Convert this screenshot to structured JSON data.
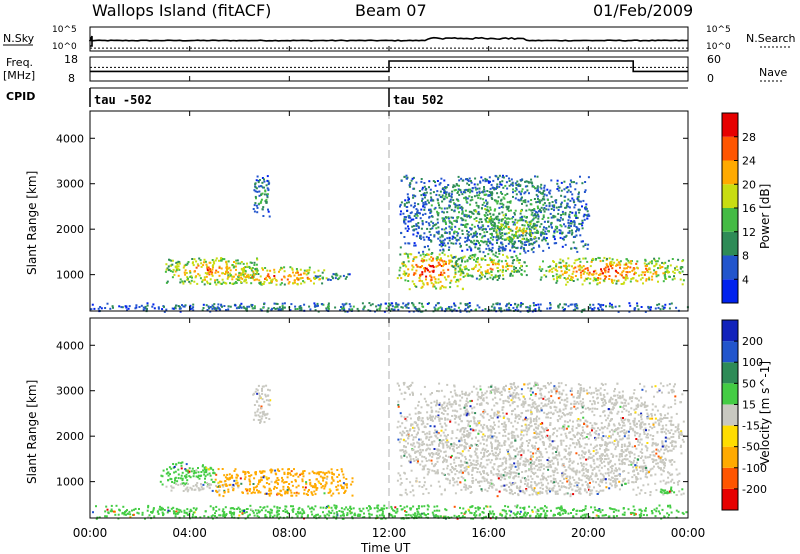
{
  "header": {
    "station": "Wallops Island (fitACF)",
    "beam": "Beam 07",
    "date": "01/Feb/2009"
  },
  "side_labels": {
    "nsky": "N.Sky",
    "nsearch": "N.Search",
    "freq": "Freq.",
    "freq_unit": "[MHz]",
    "nave": "Nave",
    "cpid": "CPID"
  },
  "cpid_labels": [
    {
      "text": "tau -502",
      "hour": 0
    },
    {
      "text": "tau 502",
      "hour": 12
    }
  ],
  "colors": {
    "power": [
      "#0022ee",
      "#2255cc",
      "#2e8b57",
      "#44bb44",
      "#c8dd11",
      "#ffaa00",
      "#ff5500",
      "#e60000"
    ],
    "velocity": [
      "#e60000",
      "#ff5500",
      "#ffaa00",
      "#ffdd00",
      "#c8c8c0",
      "#44cc44",
      "#2e8b57",
      "#2255cc",
      "#1122bb"
    ],
    "ground_scatter": "#c0c0b8"
  },
  "chart_data": [
    {
      "type": "line",
      "name_left": "N.Sky",
      "name_right": "N.Search",
      "x_range": [
        0,
        24
      ],
      "y_left_ticks": [
        "10^5",
        "10^0"
      ],
      "y_right_ticks": [
        "10^5",
        "10^0"
      ]
    },
    {
      "type": "line",
      "name_left": "Freq. [MHz]",
      "name_right": "Nave",
      "y_left_ticks": [
        "18",
        "8"
      ],
      "y_right_ticks": [
        "60",
        "0"
      ],
      "freq_steps": [
        {
          "from": 0,
          "to": 12,
          "level": 0.35
        },
        {
          "from": 12,
          "to": 21.8,
          "level": 1.0
        },
        {
          "from": 21.8,
          "to": 24,
          "level": 0.35
        }
      ],
      "nave_level": 0.6
    },
    {
      "type": "heatmap",
      "quantity": "Power",
      "ylabel": "Slant Range [km]",
      "colorbar_label": "Power [dB]",
      "colorbar_ticks": [
        "4",
        "8",
        "12",
        "16",
        "20",
        "24",
        "28"
      ],
      "x_range": [
        0,
        24
      ],
      "y_range": [
        200,
        4600
      ],
      "y_ticks": [
        "1000",
        "2000",
        "3000",
        "4000"
      ],
      "regions": [
        {
          "x": [
            3.0,
            6.8
          ],
          "y": [
            800,
            1400
          ],
          "level": 0.7
        },
        {
          "x": [
            5.5,
            9.5
          ],
          "y": [
            800,
            1200
          ],
          "level": 0.75
        },
        {
          "x": [
            9.0,
            10.5
          ],
          "y": [
            900,
            1050
          ],
          "level": 0.35
        },
        {
          "x": [
            6.5,
            7.2
          ],
          "y": [
            2300,
            3200
          ],
          "level": 0.35
        },
        {
          "x": [
            12.3,
            15.0
          ],
          "y": [
            700,
            1500
          ],
          "level": 0.8
        },
        {
          "x": [
            14.5,
            17.5
          ],
          "y": [
            900,
            1500
          ],
          "level": 0.6
        },
        {
          "x": [
            12.4,
            20.0
          ],
          "y": [
            1500,
            3200
          ],
          "level": 0.35
        },
        {
          "x": [
            18.0,
            23.8
          ],
          "y": [
            800,
            1400
          ],
          "level": 0.75
        },
        {
          "x": [
            16.0,
            18.2
          ],
          "y": [
            1700,
            2300
          ],
          "level": 0.55
        },
        {
          "x": [
            0,
            24
          ],
          "y": [
            200,
            400
          ],
          "level": 0.3
        }
      ]
    },
    {
      "type": "heatmap",
      "quantity": "Velocity",
      "ylabel": "Slant Range [km]",
      "xlabel": "Time UT",
      "colorbar_label": "Velocity [m s^-1]",
      "colorbar_ticks": [
        "-200",
        "-100",
        "-50",
        "-15",
        "15",
        "50",
        "100",
        "200"
      ],
      "x_ticks": [
        "00:00",
        "04:00",
        "08:00",
        "12:00",
        "16:00",
        "20:00",
        "00:00"
      ],
      "x_range": [
        0,
        24
      ],
      "y_range": [
        200,
        4600
      ],
      "y_ticks": [
        "1000",
        "2000",
        "3000",
        "4000"
      ],
      "regions": [
        {
          "x": [
            2.8,
            5.0
          ],
          "y": [
            950,
            1450
          ],
          "level": 5
        },
        {
          "x": [
            3.0,
            6.0
          ],
          "y": [
            800,
            1000
          ],
          "level": 4
        },
        {
          "x": [
            5.0,
            10.5
          ],
          "y": [
            700,
            1300
          ],
          "level": 2
        },
        {
          "x": [
            6.5,
            7.2
          ],
          "y": [
            2300,
            3200
          ],
          "level": 4
        },
        {
          "x": [
            12.3,
            23.8
          ],
          "y": [
            700,
            3200
          ],
          "level": 4
        },
        {
          "x": [
            22.8,
            23.8
          ],
          "y": [
            750,
            900
          ],
          "level": 5
        },
        {
          "x": [
            0,
            24
          ],
          "y": [
            200,
            500
          ],
          "level": 5
        }
      ]
    }
  ]
}
